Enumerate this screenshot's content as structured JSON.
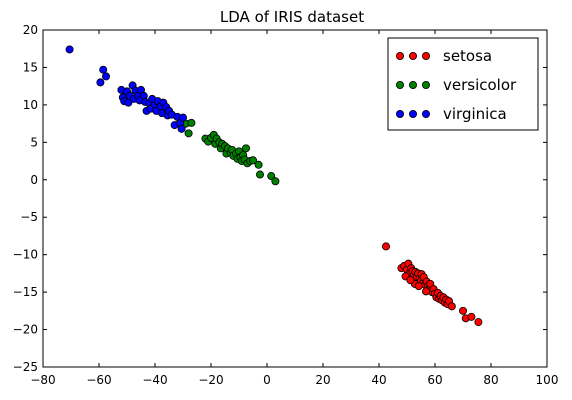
{
  "chart_data": {
    "type": "scatter",
    "title": "LDA of IRIS dataset",
    "xlabel": "",
    "ylabel": "",
    "xlim": [
      -80,
      100
    ],
    "ylim": [
      -25,
      20
    ],
    "xticks": [
      -80,
      -60,
      -40,
      -20,
      0,
      20,
      40,
      60,
      80,
      100
    ],
    "yticks": [
      -25,
      -20,
      -15,
      -10,
      -5,
      0,
      5,
      10,
      15,
      20
    ],
    "grid": false,
    "legend_position": "top-right",
    "series": [
      {
        "name": "setosa",
        "color": "#ff0000",
        "points": [
          [
            42.5,
            -8.9
          ],
          [
            48,
            -11.8
          ],
          [
            49,
            -11.5
          ],
          [
            50,
            -12
          ],
          [
            50.5,
            -11.2
          ],
          [
            51,
            -12.5
          ],
          [
            51.5,
            -11.8
          ],
          [
            52,
            -12.2
          ],
          [
            52.5,
            -12.8
          ],
          [
            53,
            -12.3
          ],
          [
            53.5,
            -13
          ],
          [
            54,
            -12.5
          ],
          [
            54.5,
            -13.2
          ],
          [
            55,
            -13.5
          ],
          [
            55.2,
            -12.6
          ],
          [
            55.8,
            -13.8
          ],
          [
            56,
            -13
          ],
          [
            56.5,
            -14
          ],
          [
            57,
            -13.6
          ],
          [
            57.5,
            -14.2
          ],
          [
            58,
            -14.6
          ],
          [
            58.3,
            -13.9
          ],
          [
            59,
            -15
          ],
          [
            59.5,
            -14.6
          ],
          [
            60,
            -15.2
          ],
          [
            60.5,
            -15.7
          ],
          [
            61,
            -15.1
          ],
          [
            61.5,
            -15.9
          ],
          [
            62,
            -15.5
          ],
          [
            62.5,
            -16.1
          ],
          [
            63,
            -15.7
          ],
          [
            63.5,
            -16.4
          ],
          [
            64,
            -16
          ],
          [
            64.5,
            -16.6
          ],
          [
            65,
            -16.2
          ],
          [
            66,
            -16.9
          ],
          [
            52.8,
            -13.9
          ],
          [
            54.2,
            -14.2
          ],
          [
            56.8,
            -14.9
          ],
          [
            49.5,
            -12.9
          ],
          [
            51.2,
            -13.4
          ],
          [
            70,
            -17.5
          ],
          [
            71,
            -18.5
          ],
          [
            73,
            -18.3
          ],
          [
            75.5,
            -19
          ]
        ]
      },
      {
        "name": "versicolor",
        "color": "#008000",
        "points": [
          [
            -29,
            7.5
          ],
          [
            -28,
            6.2
          ],
          [
            -27,
            7.6
          ],
          [
            -22,
            5.5
          ],
          [
            -21,
            5.1
          ],
          [
            -20,
            5.6
          ],
          [
            -19,
            6
          ],
          [
            -18.5,
            4.8
          ],
          [
            -18,
            5.5
          ],
          [
            -17,
            5
          ],
          [
            -16.5,
            4.2
          ],
          [
            -16,
            4.8
          ],
          [
            -15,
            4.5
          ],
          [
            -14.5,
            3.5
          ],
          [
            -14,
            4.2
          ],
          [
            -13,
            3.6
          ],
          [
            -12.5,
            4
          ],
          [
            -12,
            3.2
          ],
          [
            -11,
            3.5
          ],
          [
            -10.5,
            2.8
          ],
          [
            -10,
            3.8
          ],
          [
            -9.5,
            3
          ],
          [
            -9,
            2.5
          ],
          [
            -8.5,
            3.3
          ],
          [
            -8,
            2.7
          ],
          [
            -7.5,
            4.2
          ],
          [
            -7,
            2.2
          ],
          [
            -6,
            2.5
          ],
          [
            -5,
            2.6
          ],
          [
            -3,
            2
          ],
          [
            -2.5,
            0.7
          ],
          [
            1.5,
            0.5
          ],
          [
            3,
            -0.2
          ]
        ]
      },
      {
        "name": "virginica",
        "color": "#0000ff",
        "points": [
          [
            -70.5,
            17.4
          ],
          [
            -59.5,
            13
          ],
          [
            -58.5,
            14.7
          ],
          [
            -57.5,
            13.8
          ],
          [
            -52,
            12
          ],
          [
            -51.5,
            11
          ],
          [
            -51,
            10.5
          ],
          [
            -50,
            11.8
          ],
          [
            -49.5,
            10.3
          ],
          [
            -49,
            11.2
          ],
          [
            -48,
            12.6
          ],
          [
            -47.5,
            10.8
          ],
          [
            -47,
            11.9
          ],
          [
            -46,
            11.2
          ],
          [
            -45.5,
            10.6
          ],
          [
            -45,
            12
          ],
          [
            -44,
            11.2
          ],
          [
            -43.5,
            10.4
          ],
          [
            -43,
            9.2
          ],
          [
            -42,
            10.2
          ],
          [
            -41.5,
            9.5
          ],
          [
            -41,
            10.8
          ],
          [
            -40,
            10
          ],
          [
            -39.5,
            9.2
          ],
          [
            -39,
            10.5
          ],
          [
            -38,
            9.8
          ],
          [
            -37.5,
            8.9
          ],
          [
            -37,
            10.3
          ],
          [
            -36,
            9.7
          ],
          [
            -35.5,
            8.6
          ],
          [
            -35,
            9.2
          ],
          [
            -34,
            8.7
          ],
          [
            -33,
            7.3
          ],
          [
            -32,
            8.4
          ],
          [
            -31,
            7.6
          ],
          [
            -30,
            8.3
          ],
          [
            -30.5,
            6.8
          ]
        ]
      }
    ]
  }
}
